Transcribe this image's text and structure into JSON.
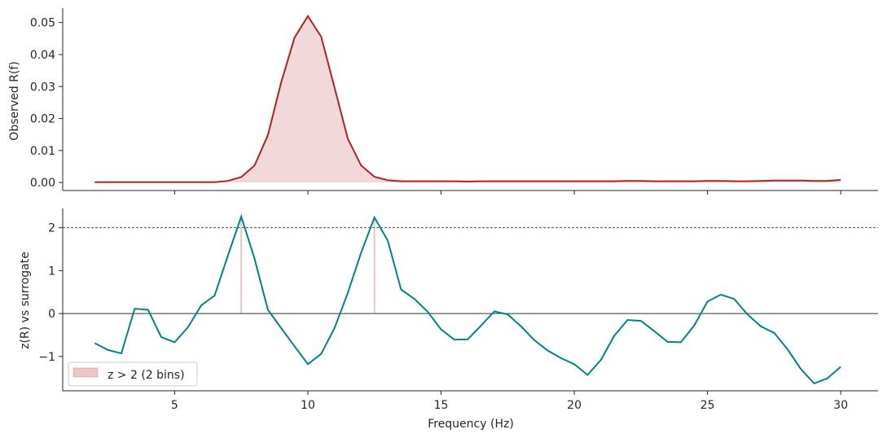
{
  "colors": {
    "top_line": "#b22222",
    "top_fill": "#f2d9d9",
    "bottom_line": "#00838a",
    "highlight": "#e8b8b8",
    "axis": "#262626",
    "dashed": "#333333"
  },
  "chart_data": [
    {
      "type": "area",
      "ylabel": "Observed R(f)",
      "xlim": [
        0.8,
        31.4
      ],
      "ylim": [
        -0.0025,
        0.0545
      ],
      "yticks": [
        0.0,
        0.01,
        0.02,
        0.03,
        0.04,
        0.05
      ],
      "ytick_labels": [
        "0.00",
        "0.01",
        "0.02",
        "0.03",
        "0.04",
        "0.05"
      ],
      "xticks": [
        5,
        10,
        15,
        20,
        25,
        30
      ],
      "x": [
        2,
        2.5,
        3,
        3.5,
        4,
        4.5,
        5,
        5.5,
        6,
        6.5,
        7,
        7.5,
        8,
        8.5,
        9,
        9.5,
        10,
        10.5,
        11,
        11.5,
        12,
        12.5,
        13,
        13.5,
        14,
        14.5,
        15,
        15.5,
        16,
        16.5,
        17,
        17.5,
        18,
        18.5,
        19,
        19.5,
        20,
        20.5,
        21,
        21.5,
        22,
        22.5,
        23,
        23.5,
        24,
        24.5,
        25,
        25.5,
        26,
        26.5,
        27,
        27.5,
        28,
        28.5,
        29,
        29.5,
        30
      ],
      "series": [
        {
          "values": [
            0.0001,
            0.0001,
            0.0001,
            0.0001,
            0.0001,
            0.0001,
            0.0001,
            0.0001,
            0.0001,
            0.0001,
            0.0005,
            0.0017,
            0.0053,
            0.0148,
            0.0313,
            0.0453,
            0.052,
            0.0456,
            0.0297,
            0.0137,
            0.0053,
            0.0018,
            0.0007,
            0.0004,
            0.0004,
            0.0004,
            0.0004,
            0.0004,
            0.0003,
            0.0004,
            0.0004,
            0.0004,
            0.0004,
            0.0004,
            0.0004,
            0.0004,
            0.0004,
            0.0004,
            0.0004,
            0.0004,
            0.0005,
            0.0005,
            0.0004,
            0.0004,
            0.0004,
            0.0004,
            0.0005,
            0.0005,
            0.0004,
            0.0004,
            0.0005,
            0.0006,
            0.0006,
            0.0006,
            0.0005,
            0.0005,
            0.0008
          ]
        }
      ],
      "grid": false
    },
    {
      "type": "line",
      "ylabel": "z(R) vs surrogate",
      "xlabel": "Frequency (Hz)",
      "xlim": [
        0.8,
        31.4
      ],
      "ylim": [
        -1.8,
        2.45
      ],
      "yticks": [
        -1,
        0,
        1,
        2
      ],
      "ytick_labels": [
        "−1",
        "0",
        "1",
        "2"
      ],
      "xticks": [
        5,
        10,
        15,
        20,
        25,
        30
      ],
      "xtick_labels": [
        "5",
        "10",
        "15",
        "20",
        "25",
        "30"
      ],
      "threshold": 2,
      "zero_line": 0,
      "x": [
        2,
        2.5,
        3,
        3.5,
        4,
        4.5,
        5,
        5.5,
        6,
        6.5,
        7,
        7.5,
        8,
        8.5,
        9,
        9.5,
        10,
        10.5,
        11,
        11.5,
        12,
        12.5,
        13,
        13.5,
        14,
        14.5,
        15,
        15.5,
        16,
        16.5,
        17,
        17.5,
        18,
        18.5,
        19,
        19.5,
        20,
        20.5,
        21,
        21.5,
        22,
        22.5,
        23,
        23.5,
        24,
        24.5,
        25,
        25.5,
        26,
        26.5,
        27,
        27.5,
        28,
        28.5,
        29,
        29.5,
        30
      ],
      "series": [
        {
          "values": [
            -0.69,
            -0.85,
            -0.93,
            0.11,
            0.09,
            -0.55,
            -0.67,
            -0.32,
            0.19,
            0.42,
            1.35,
            2.26,
            1.28,
            0.09,
            -0.34,
            -0.76,
            -1.18,
            -0.94,
            -0.34,
            0.48,
            1.42,
            2.24,
            1.7,
            0.56,
            0.34,
            0.04,
            -0.37,
            -0.61,
            -0.6,
            -0.28,
            0.05,
            -0.02,
            -0.3,
            -0.62,
            -0.86,
            -1.04,
            -1.18,
            -1.43,
            -1.08,
            -0.52,
            -0.15,
            -0.17,
            -0.41,
            -0.66,
            -0.67,
            -0.28,
            0.28,
            0.44,
            0.34,
            -0.02,
            -0.3,
            -0.45,
            -0.83,
            -1.29,
            -1.63,
            -1.51,
            -1.24
          ]
        }
      ],
      "highlight_bins": [
        7.5,
        12.5
      ],
      "legend": {
        "label": "z > 2 (2 bins)",
        "placement": "lower-left"
      },
      "grid": false
    }
  ]
}
